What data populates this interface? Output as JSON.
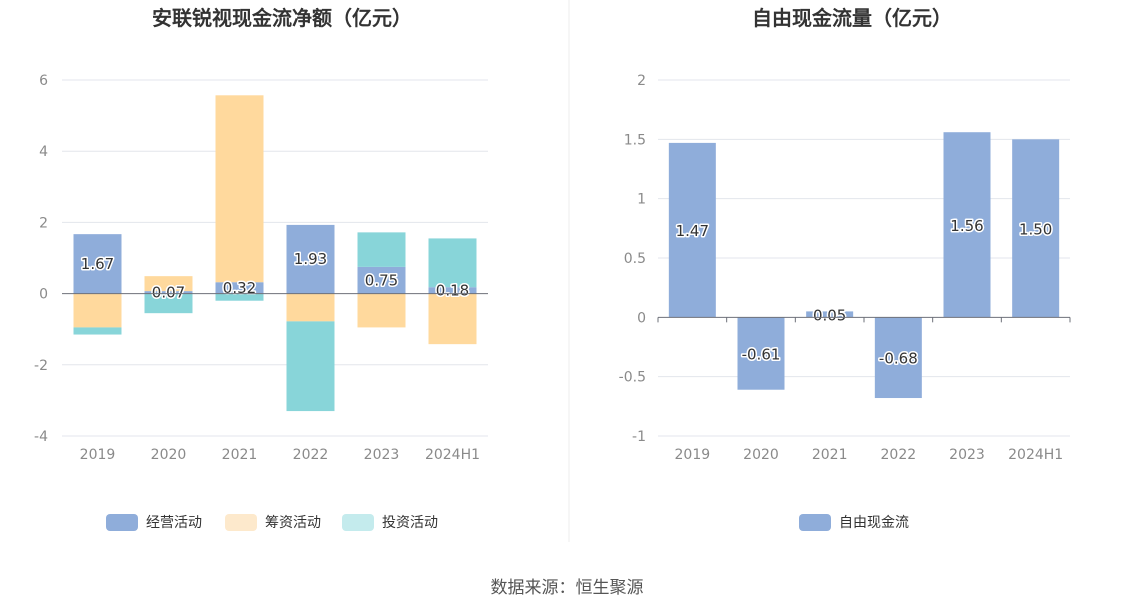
{
  "source_text": "数据来源：恒生聚源",
  "colors": {
    "operating": "#8fadda",
    "financing": "#ffd99d",
    "investing": "#88d5d9",
    "financing_legend": "#fde9cc",
    "investing_legend": "#c4ebed",
    "free_cash_flow": "#8fadda",
    "grid": "#e3e6ec",
    "axis": "#6e7079"
  },
  "chart_data": [
    {
      "type": "bar",
      "stacked": true,
      "title": "安联锐视现金流净额（亿元）",
      "categories": [
        "2019",
        "2020",
        "2021",
        "2022",
        "2023",
        "2024H1"
      ],
      "ylim": [
        -4,
        6
      ],
      "yticks": [
        "6",
        "4",
        "2",
        "0",
        "-2",
        "-4"
      ],
      "legend_position": "bottom",
      "series": [
        {
          "name": "经营活动",
          "values": [
            1.67,
            0.07,
            0.32,
            1.93,
            0.75,
            0.18
          ],
          "labels": [
            "1.67",
            "0.07",
            "0.32",
            "1.93",
            "0.75",
            "0.18"
          ]
        },
        {
          "name": "筹资活动",
          "values": [
            -0.95,
            0.42,
            5.25,
            -0.78,
            -0.95,
            -1.42
          ]
        },
        {
          "name": "投资活动",
          "values": [
            -0.2,
            -0.55,
            -0.2,
            -2.52,
            0.97,
            1.37
          ]
        }
      ]
    },
    {
      "type": "bar",
      "title": "自由现金流量（亿元）",
      "categories": [
        "2019",
        "2020",
        "2021",
        "2022",
        "2023",
        "2024H1"
      ],
      "ylim": [
        -1,
        2
      ],
      "yticks": [
        "2",
        "1.5",
        "1",
        "0.5",
        "0",
        "-0.5",
        "-1"
      ],
      "legend_position": "bottom",
      "series": [
        {
          "name": "自由现金流",
          "values": [
            1.47,
            -0.61,
            0.05,
            -0.68,
            1.56,
            1.5
          ],
          "labels": [
            "1.47",
            "-0.61",
            "0.05",
            "-0.68",
            "1.56",
            "1.50"
          ]
        }
      ]
    }
  ]
}
